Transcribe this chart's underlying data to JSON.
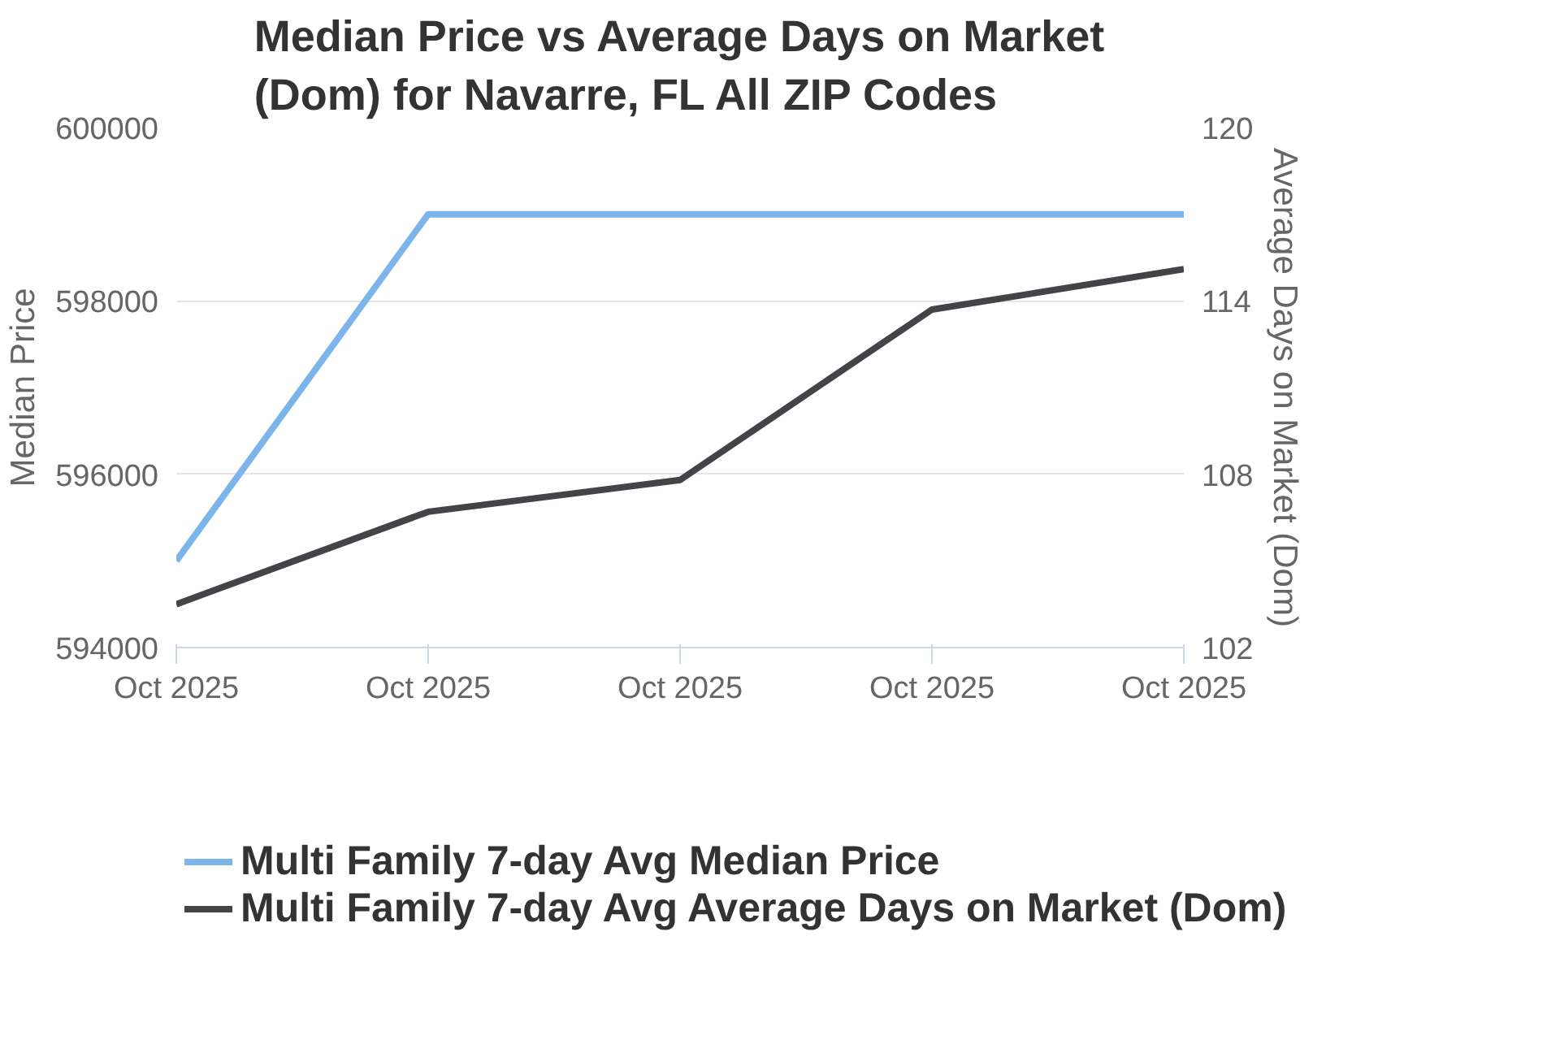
{
  "chart_data": {
    "type": "line",
    "title": "Median Price vs Average Days on Market (Dom) for Navarre, FL All ZIP Codes",
    "ylabel": "Median Price",
    "y2label": "Average Days on Market (Dom)",
    "categories": [
      "Oct 2025",
      "Oct 2025",
      "Oct 2025",
      "Oct 2025",
      "Oct 2025"
    ],
    "series": [
      {
        "name": "Multi Family 7-day Avg Median Price",
        "color": "#7cb5ec",
        "values": [
          595000,
          599000,
          599000,
          599000,
          599000
        ]
      },
      {
        "name": "Multi Family 7-day Avg Average Days on Market (Dom)",
        "color": "#434348",
        "axis": "y2",
        "values": [
          103.5,
          106.7,
          107.8,
          113.7,
          115.1
        ]
      }
    ],
    "ylim": [
      594000,
      600000
    ],
    "yticks": [
      594000,
      596000,
      598000,
      600000
    ],
    "y2lim": [
      102,
      120
    ],
    "y2ticks": [
      102,
      108,
      114,
      120
    ],
    "grid": "y",
    "legend": "bottom",
    "marker": "none",
    "line_style": "solid"
  }
}
